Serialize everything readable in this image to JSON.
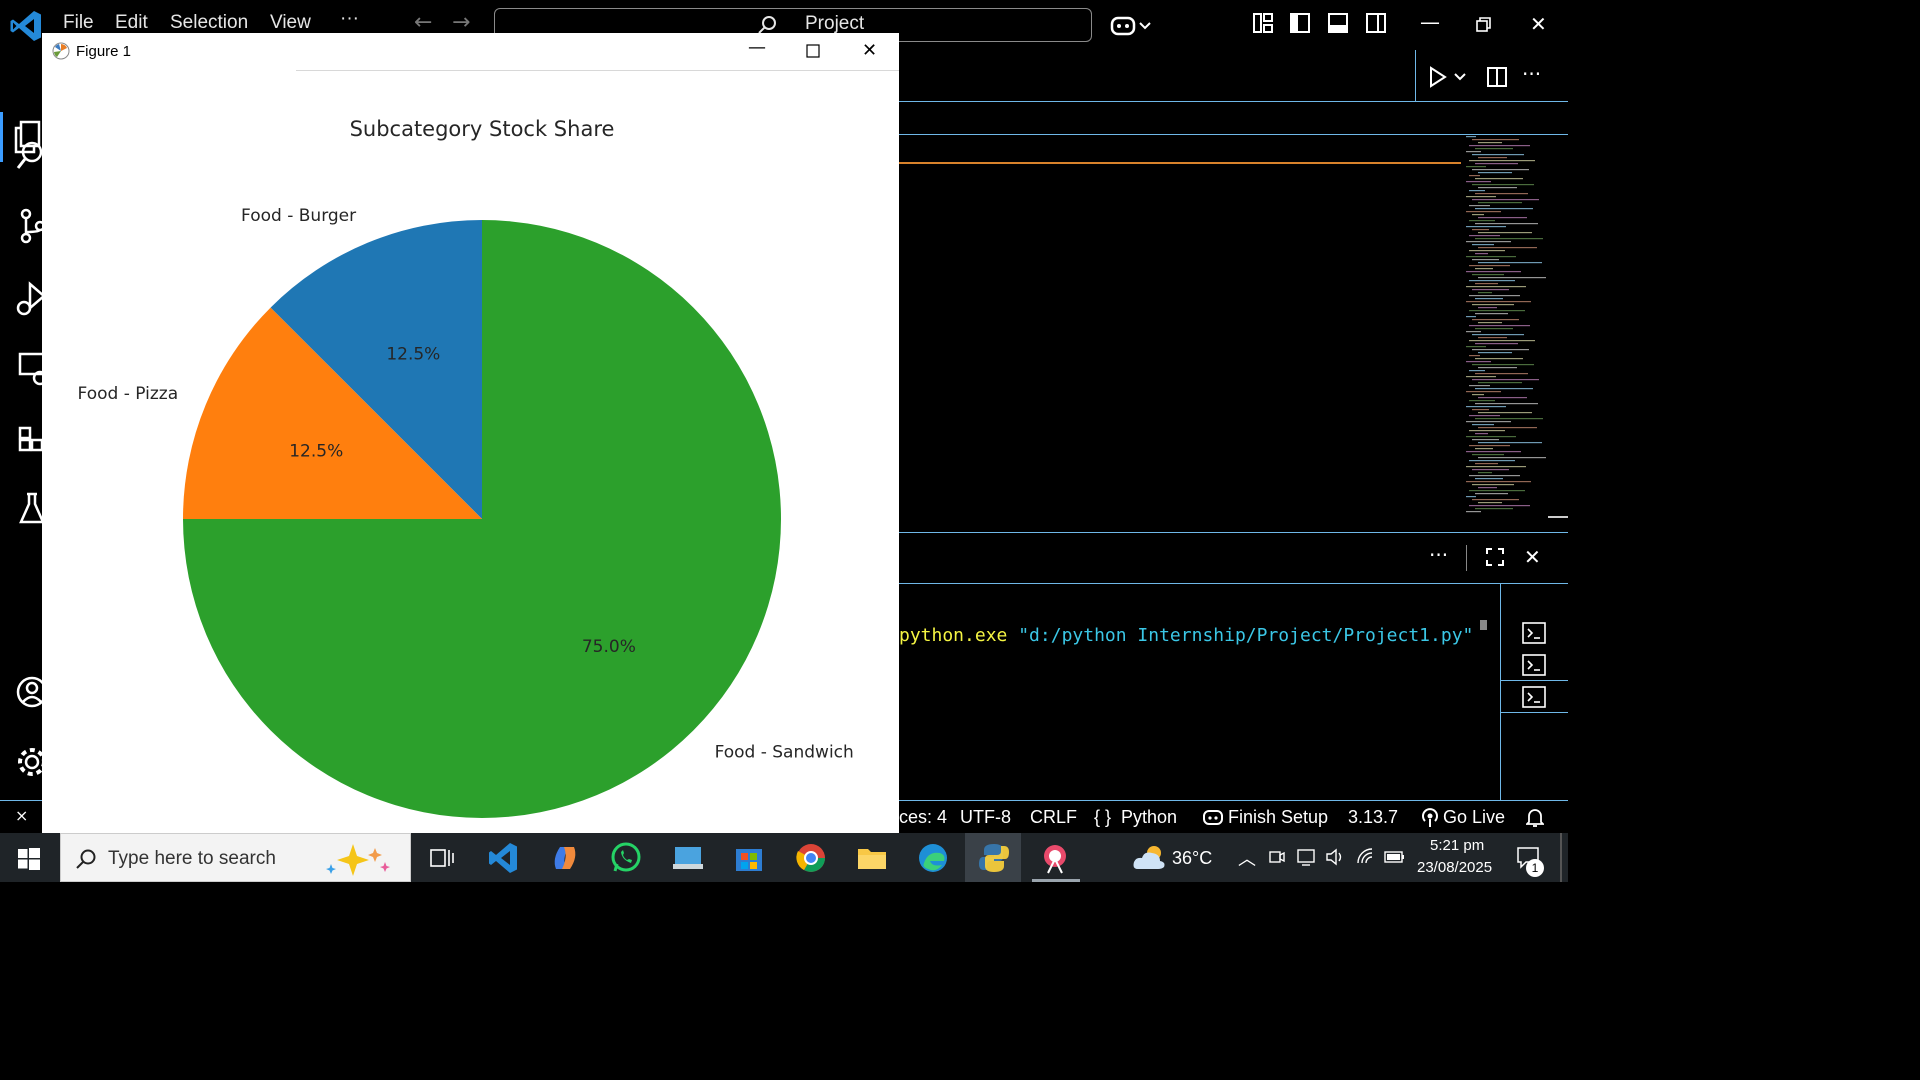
{
  "menu": {
    "file": "File",
    "edit": "Edit",
    "selection": "Selection",
    "view": "View",
    "more": "···"
  },
  "command_center": {
    "label": "Project"
  },
  "figure_window": {
    "title": "Figure 1"
  },
  "chart_data": {
    "type": "pie",
    "title": "Subcategory Stock Share",
    "slices": [
      {
        "label": "Food - Burger",
        "value": 12.5,
        "pct_label": "12.5%",
        "color": "#1f77b4"
      },
      {
        "label": "Food - Pizza",
        "value": 12.5,
        "pct_label": "12.5%",
        "color": "#ff7f0e"
      },
      {
        "label": "Food - Sandwich",
        "value": 75.0,
        "pct_label": "75.0%",
        "color": "#2ca02c"
      }
    ],
    "start_angle": 90,
    "direction": "counterclockwise"
  },
  "terminal": {
    "exe": "python.exe",
    "path": "\"d:/python Internship/Project/Project1.py\""
  },
  "statusbar": {
    "spaces": "ces: 4",
    "encoding": "UTF-8",
    "eol": "CRLF",
    "language_icon": "{ }",
    "language": "Python",
    "finish_setup": "Finish Setup",
    "version": "3.13.7",
    "go_live": "Go Live"
  },
  "taskbar": {
    "search_placeholder": "Type here to search",
    "weather": "36°C",
    "time": "5:21 pm",
    "date": "23/08/2025",
    "notifications": "1"
  },
  "colors": {
    "accent": "#6fb8e8",
    "vscode_blue": "#3b9cff",
    "taskbar": "#1f2428"
  }
}
